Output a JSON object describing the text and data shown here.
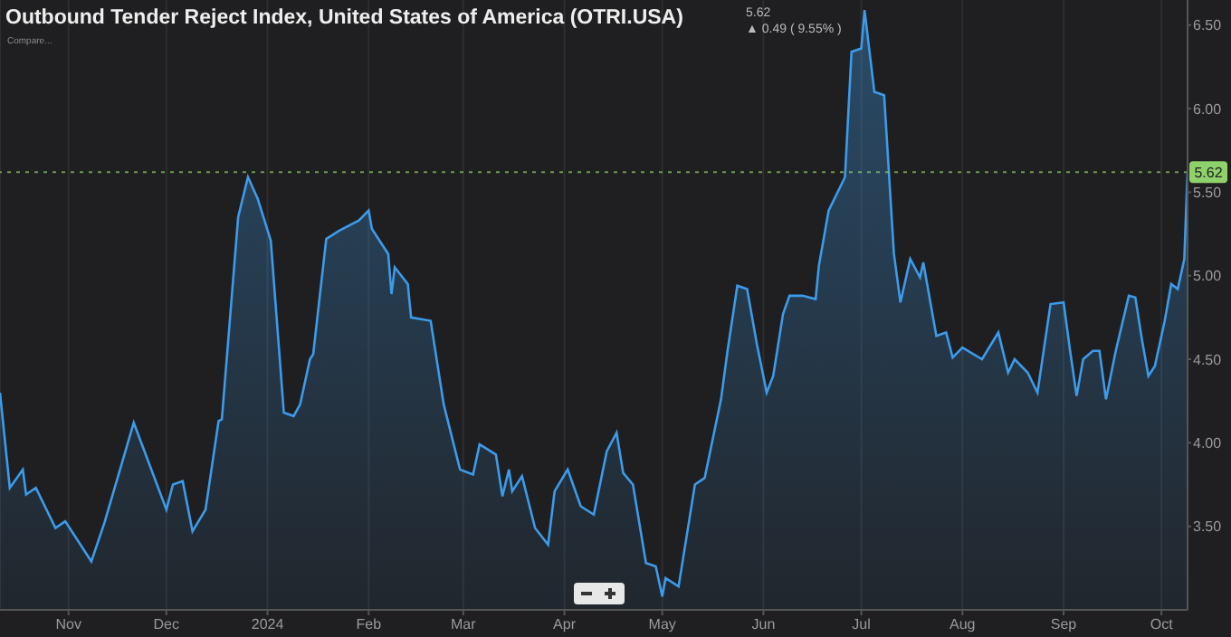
{
  "chart_data": {
    "type": "area",
    "title": "Outbound Tender Reject Index, United States of America (OTRI.USA)",
    "annotations": [
      "5.62",
      "▲ 0.49 ( 9.55% )",
      "Compare..."
    ],
    "x": [
      "2023-10-11",
      "2023-10-14",
      "2023-10-18",
      "2023-10-19",
      "2023-10-22",
      "2023-10-28",
      "2023-10-31",
      "2023-11-08",
      "2023-11-12",
      "2023-11-21",
      "2023-12-01",
      "2023-12-03",
      "2023-12-06",
      "2023-12-09",
      "2023-12-13",
      "2023-12-17",
      "2023-12-18",
      "2023-12-23",
      "2023-12-26",
      "2023-12-29",
      "2024-01-02",
      "2024-01-06",
      "2024-01-09",
      "2024-01-11",
      "2024-01-14",
      "2024-01-15",
      "2024-01-19",
      "2024-01-23",
      "2024-01-29",
      "2024-02-01",
      "2024-02-02",
      "2024-02-07",
      "2024-02-08",
      "2024-02-09",
      "2024-02-13",
      "2024-02-14",
      "2024-02-20",
      "2024-02-24",
      "2024-02-29",
      "2024-03-04",
      "2024-03-06",
      "2024-03-11",
      "2024-03-13",
      "2024-03-15",
      "2024-03-16",
      "2024-03-19",
      "2024-03-23",
      "2024-03-27",
      "2024-03-29",
      "2024-04-02",
      "2024-04-06",
      "2024-04-10",
      "2024-04-14",
      "2024-04-17",
      "2024-04-19",
      "2024-04-22",
      "2024-04-26",
      "2024-04-29",
      "2024-05-01",
      "2024-05-02",
      "2024-05-06",
      "2024-05-11",
      "2024-05-14",
      "2024-05-19",
      "2024-05-21",
      "2024-05-24",
      "2024-05-27",
      "2024-05-30",
      "2024-06-02",
      "2024-06-04",
      "2024-06-07",
      "2024-06-09",
      "2024-06-13",
      "2024-06-17",
      "2024-06-18",
      "2024-06-21",
      "2024-06-26",
      "2024-06-28",
      "2024-07-01",
      "2024-07-02",
      "2024-07-05",
      "2024-07-08",
      "2024-07-11",
      "2024-07-13",
      "2024-07-16",
      "2024-07-19",
      "2024-07-20",
      "2024-07-24",
      "2024-07-27",
      "2024-07-29",
      "2024-08-01",
      "2024-08-07",
      "2024-08-12",
      "2024-08-15",
      "2024-08-17",
      "2024-08-21",
      "2024-08-24",
      "2024-08-28",
      "2024-09-01",
      "2024-09-03",
      "2024-09-05",
      "2024-09-07",
      "2024-09-10",
      "2024-09-12",
      "2024-09-14",
      "2024-09-17",
      "2024-09-21",
      "2024-09-23",
      "2024-09-25",
      "2024-09-27",
      "2024-09-29",
      "2024-10-02",
      "2024-10-04",
      "2024-10-06",
      "2024-10-08",
      "2024-10-09"
    ],
    "series": [
      {
        "color": "#3d9be9",
        "values": [
          4.3,
          3.73,
          3.84,
          3.69,
          3.73,
          3.49,
          3.53,
          3.29,
          3.52,
          4.12,
          3.6,
          3.75,
          3.77,
          3.47,
          3.6,
          4.13,
          4.14,
          5.35,
          5.59,
          5.46,
          5.21,
          4.18,
          4.16,
          4.23,
          4.5,
          4.53,
          5.22,
          5.27,
          5.33,
          5.39,
          5.28,
          5.13,
          4.89,
          5.05,
          4.95,
          4.75,
          4.73,
          4.23,
          3.84,
          3.81,
          3.99,
          3.93,
          3.68,
          3.84,
          3.71,
          3.8,
          3.49,
          3.39,
          3.71,
          3.84,
          3.62,
          3.57,
          3.95,
          4.06,
          3.82,
          3.75,
          3.28,
          3.26,
          3.08,
          3.19,
          3.14,
          3.75,
          3.79,
          4.26,
          4.55,
          4.94,
          4.92,
          4.59,
          4.3,
          4.4,
          4.77,
          4.88,
          4.88,
          4.86,
          5.06,
          5.39,
          5.59,
          6.34,
          6.36,
          6.59,
          6.1,
          6.08,
          5.13,
          4.84,
          5.1,
          4.99,
          5.08,
          4.64,
          4.66,
          4.51,
          4.57,
          4.5,
          4.66,
          4.42,
          4.5,
          4.42,
          4.3,
          4.83,
          4.84,
          4.55,
          4.28,
          4.5,
          4.55,
          4.55,
          4.26,
          4.55,
          4.88,
          4.87,
          4.62,
          4.4,
          4.46,
          4.73,
          4.95,
          4.92,
          5.1,
          5.62
        ]
      }
    ],
    "xlim": [
      "2023-10-11",
      "2024-10-09"
    ],
    "xticks": [
      {
        "value": "2023-11-01",
        "label": "Nov"
      },
      {
        "value": "2023-12-01",
        "label": "Dec"
      },
      {
        "value": "2024-01-01",
        "label": "2024"
      },
      {
        "value": "2024-02-01",
        "label": "Feb"
      },
      {
        "value": "2024-03-01",
        "label": "Mar"
      },
      {
        "value": "2024-04-01",
        "label": "Apr"
      },
      {
        "value": "2024-05-01",
        "label": "May"
      },
      {
        "value": "2024-06-01",
        "label": "Jun"
      },
      {
        "value": "2024-07-01",
        "label": "Jul"
      },
      {
        "value": "2024-08-01",
        "label": "Aug"
      },
      {
        "value": "2024-09-01",
        "label": "Sep"
      },
      {
        "value": "2024-10-01",
        "label": "Oct"
      }
    ],
    "ylim": [
      3.0,
      6.65
    ],
    "yticks": [
      {
        "value": 3.5,
        "label": "3.50"
      },
      {
        "value": 4,
        "label": "4.00"
      },
      {
        "value": 4.5,
        "label": "4.50"
      },
      {
        "value": 5,
        "label": "5.00"
      },
      {
        "value": 5.5,
        "label": "5.50"
      },
      {
        "value": 6,
        "label": "6.00"
      },
      {
        "value": 6.5,
        "label": "6.50"
      }
    ],
    "ref_lines": [
      {
        "axis": "y",
        "value": 5.62,
        "label": "5.62",
        "color": "#8fd16a",
        "line_style": "dotted"
      }
    ],
    "grid": "x",
    "marker": "none"
  }
}
